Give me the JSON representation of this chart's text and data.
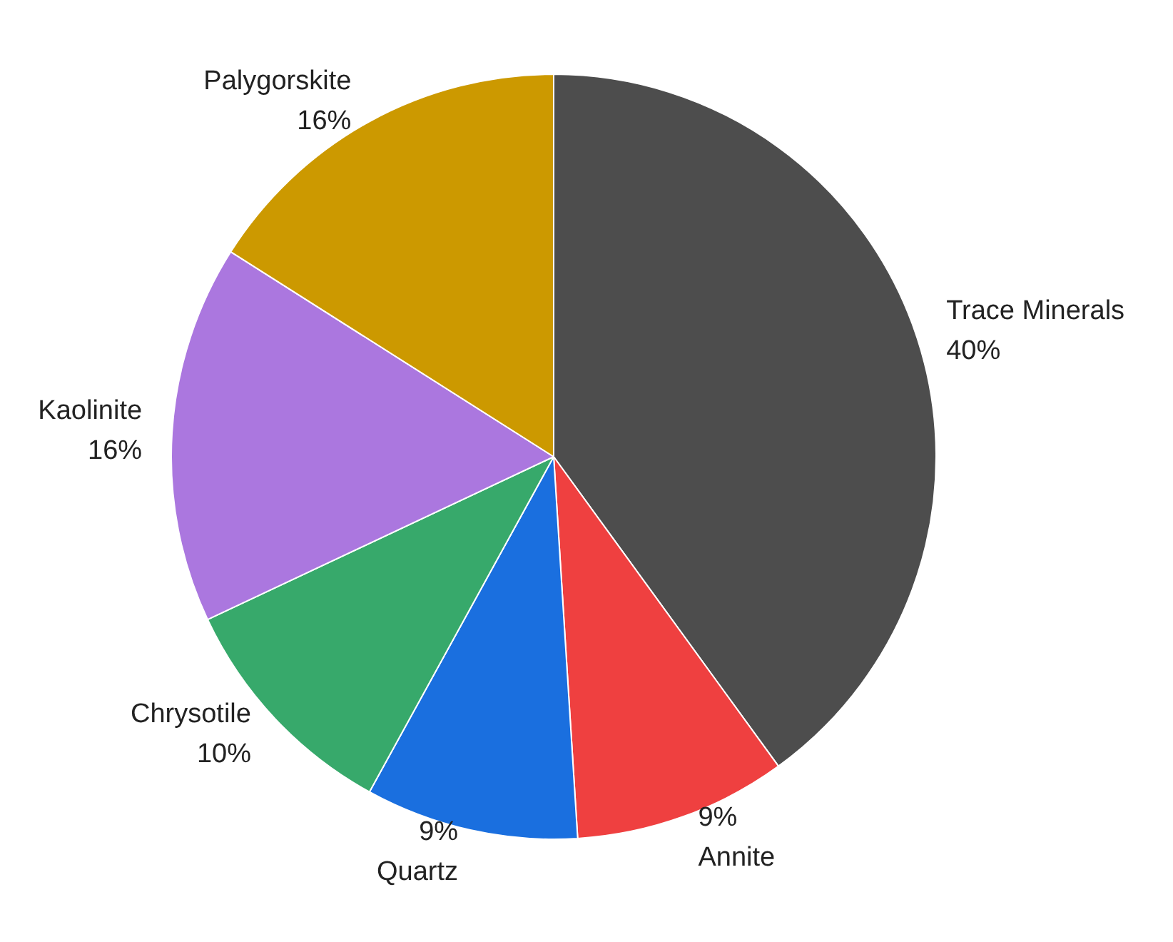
{
  "chart_data": {
    "type": "pie",
    "categories": [
      "Trace Minerals",
      "Annite",
      "Quartz",
      "Chrysotile",
      "Kaolinite",
      "Palygorskite"
    ],
    "values": [
      40,
      9,
      9,
      10,
      16,
      16
    ],
    "value_labels": [
      "40%",
      "9%",
      "9%",
      "10%",
      "16%",
      "16%"
    ],
    "colors": [
      "#4d4d4d",
      "#ef4040",
      "#1a6fdf",
      "#37a96b",
      "#ab77df",
      "#cc9900"
    ],
    "legend": false
  }
}
